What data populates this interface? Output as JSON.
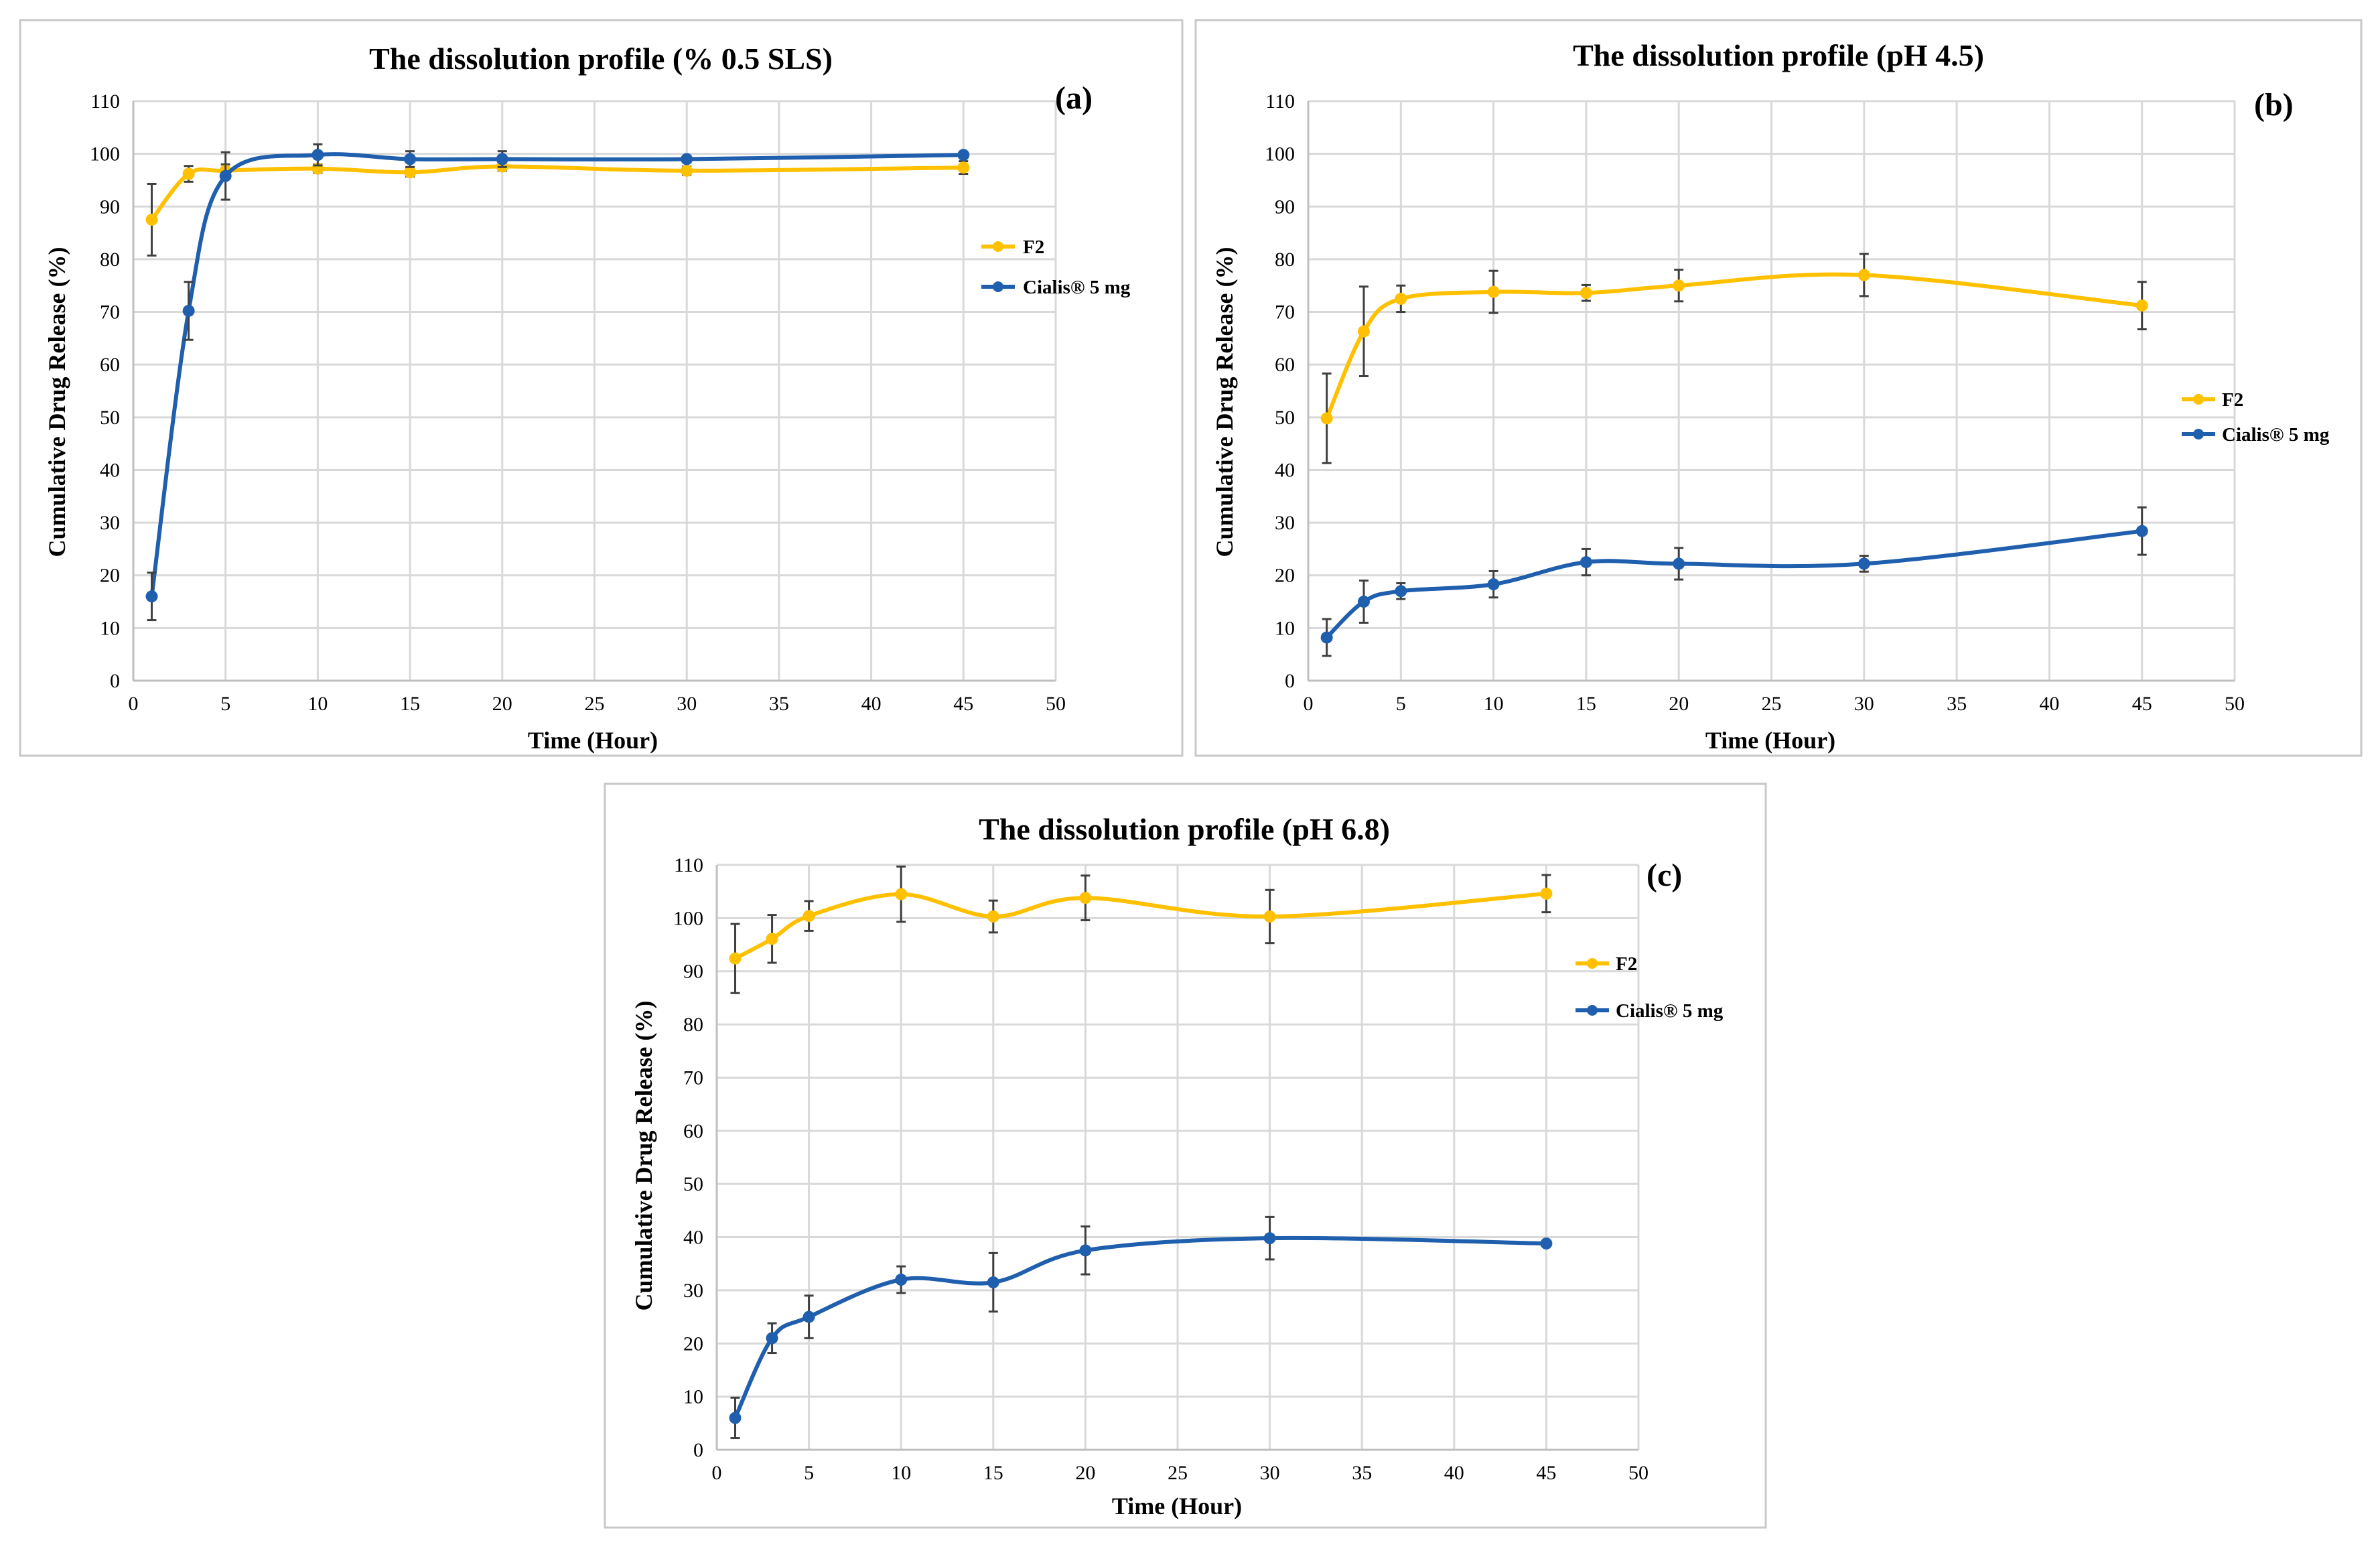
{
  "chart_data": [
    {
      "type": "line",
      "panel": "(a)",
      "title": "The dissolution profile (% 0.5 SLS)",
      "xlabel": "Time (Hour)",
      "ylabel": "Cumulative Drug Release (%)",
      "xlim": [
        0,
        50
      ],
      "ylim": [
        0,
        110
      ],
      "xticks": [
        0,
        5,
        10,
        15,
        20,
        25,
        30,
        35,
        40,
        45,
        50
      ],
      "yticks": [
        0,
        10,
        20,
        30,
        40,
        50,
        60,
        70,
        80,
        90,
        100,
        110
      ],
      "grid": true,
      "legend_position": "right",
      "x": [
        1,
        3,
        5,
        10,
        15,
        20,
        30,
        45
      ],
      "series": [
        {
          "name": "F2",
          "color": "#FFC000",
          "values": [
            87.5,
            96.2,
            96.8,
            97.2,
            96.5,
            97.6,
            96.8,
            97.4
          ],
          "errors": [
            6.8,
            1.5,
            1.2,
            0.8,
            0.8,
            0.8,
            0.8,
            1.2
          ]
        },
        {
          "name": "Cialis® 5 mg",
          "color": "#1F5FAD",
          "values": [
            16,
            70.2,
            95.8,
            99.8,
            99,
            99,
            99,
            99.8
          ],
          "errors": [
            4.5,
            5.5,
            4.5,
            2,
            1.5,
            1.5,
            0.5,
            0.5
          ]
        }
      ]
    },
    {
      "type": "line",
      "panel": "(b)",
      "title": "The dissolution profile (pH 4.5)",
      "xlabel": "Time (Hour)",
      "ylabel": "Cumulative Drug Release (%)",
      "xlim": [
        0,
        50
      ],
      "ylim": [
        0,
        110
      ],
      "xticks": [
        0,
        5,
        10,
        15,
        20,
        25,
        30,
        35,
        40,
        45,
        50
      ],
      "yticks": [
        0,
        10,
        20,
        30,
        40,
        50,
        60,
        70,
        80,
        90,
        100,
        110
      ],
      "grid": true,
      "legend_position": "right",
      "x": [
        1,
        3,
        5,
        10,
        15,
        20,
        30,
        45
      ],
      "series": [
        {
          "name": "F2",
          "color": "#FFC000",
          "values": [
            49.8,
            66.3,
            72.5,
            73.8,
            73.6,
            75,
            77,
            71.2
          ],
          "errors": [
            8.5,
            8.5,
            2.5,
            4,
            1.5,
            3,
            4,
            4.5
          ]
        },
        {
          "name": "Cialis® 5 mg",
          "color": "#1F5FAD",
          "values": [
            8.2,
            15,
            17,
            18.3,
            22.5,
            22.2,
            22.2,
            28.4
          ],
          "errors": [
            3.5,
            4,
            1.5,
            2.5,
            2.5,
            3,
            1.5,
            4.5
          ]
        }
      ]
    },
    {
      "type": "line",
      "panel": "(c)",
      "title": "The dissolution profile (pH 6.8)",
      "xlabel": "Time (Hour)",
      "ylabel": "Cumulative Drug Release (%)",
      "xlim": [
        0,
        50
      ],
      "ylim": [
        0,
        110
      ],
      "xticks": [
        0,
        5,
        10,
        15,
        20,
        25,
        30,
        35,
        40,
        45,
        50
      ],
      "yticks": [
        0,
        10,
        20,
        30,
        40,
        50,
        60,
        70,
        80,
        90,
        100,
        110
      ],
      "grid": true,
      "legend_position": "right",
      "x": [
        1,
        3,
        5,
        10,
        15,
        20,
        30,
        45
      ],
      "series": [
        {
          "name": "F2",
          "color": "#FFC000",
          "values": [
            92.4,
            96.1,
            100.4,
            104.5,
            100.3,
            103.8,
            100.3,
            104.6
          ],
          "errors": [
            6.5,
            4.5,
            2.8,
            5.2,
            3,
            4.2,
            5,
            3.5
          ]
        },
        {
          "name": "Cialis® 5 mg",
          "color": "#1F5FAD",
          "values": [
            6,
            21,
            25,
            32,
            31.5,
            37.5,
            39.8,
            38.8
          ],
          "errors": [
            3.8,
            2.8,
            4,
            2.5,
            5.5,
            4.5,
            4,
            0.5
          ]
        }
      ]
    }
  ]
}
